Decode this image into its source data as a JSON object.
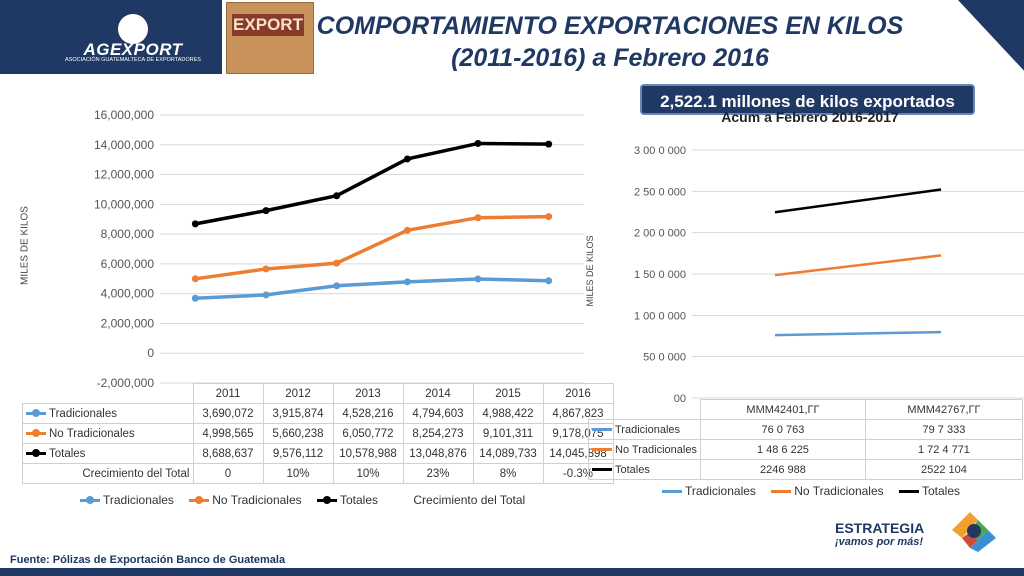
{
  "header": {
    "logo_text": "AGEXPORT",
    "logo_subtitle": "ASOCIACIÓN GUATEMALTECA DE EXPORTADORES",
    "box_label": "EXPORT",
    "title_line1": "COMPORTAMIENTO EXPORTACIONES EN KILOS",
    "title_line2": "(2011-2016) a Febrero 2016",
    "accent_color": "#1f3864"
  },
  "callout": "2,522.1 millones de kilos exportados",
  "footer": {
    "source": "Fuente: Pólizas de Exportación Banco de Guatemala",
    "brand": "ESTRATEGIA",
    "slogan": "¡vamos por más!"
  },
  "chart_data": [
    {
      "type": "line",
      "title": "",
      "ylabel": "MILES DE KILOS",
      "ylim": [
        -2000000,
        16000000
      ],
      "yticks": [
        "16,000,000",
        "14,000,000",
        "12,000,000",
        "10,000,000",
        "8,000,000",
        "6,000,000",
        "4,000,000",
        "2,000,000",
        "0",
        "-2,000,000"
      ],
      "categories": [
        "2011",
        "2012",
        "2013",
        "2014",
        "2015",
        "2016"
      ],
      "series": [
        {
          "name": "Tradicionales",
          "color": "#5b9bd5",
          "values": [
            3690072,
            3915874,
            4528216,
            4794603,
            4988422,
            4867823
          ],
          "labels": [
            "3,690,072",
            "3,915,874",
            "4,528,216",
            "4,794,603",
            "4,988,422",
            "4,867,823"
          ]
        },
        {
          "name": "No Tradicionales",
          "color": "#ed7d31",
          "values": [
            4998565,
            5660238,
            6050772,
            8254273,
            9101311,
            9178075
          ],
          "labels": [
            "4,998,565",
            "5,660,238",
            "6,050,772",
            "8,254,273",
            "9,101,311",
            "9,178,075"
          ]
        },
        {
          "name": "Totales",
          "color": "#000000",
          "values": [
            8688637,
            9576112,
            10578988,
            13048876,
            14089733,
            14045898
          ],
          "labels": [
            "8,688,637",
            "9,576,112",
            "10,578,988",
            "13,048,876",
            "14,089,733",
            "14,045,898"
          ]
        }
      ],
      "extra_row": {
        "name": "Crecimiento del Total",
        "values": [
          "0",
          "10%",
          "10%",
          "23%",
          "8%",
          "-0.3%"
        ]
      },
      "legend": [
        "Tradicionales",
        "No Tradicionales",
        "Totales",
        "Crecimiento del Total"
      ],
      "grid": true,
      "legend_position": "bottom"
    },
    {
      "type": "line",
      "title": "Acum a Febrero  2016-2017",
      "ylabel": "MILES DE KILOS",
      "ylim": [
        0,
        3000000
      ],
      "yticks": [
        "3 00 0 000",
        "2 50 0 000",
        "2 00 0 000",
        "1 50 0 000",
        "1 00 0 000",
        "50 0 000",
        "00"
      ],
      "categories": [
        "MMM42401,ГГ",
        "MMM42767,ГГ"
      ],
      "series": [
        {
          "name": "Tradicionales",
          "color": "#5b9bd5",
          "values": [
            760763,
            797333
          ],
          "labels": [
            "76 0 763",
            "79 7 333"
          ]
        },
        {
          "name": "No Tradicionales",
          "color": "#ed7d31",
          "values": [
            1486225,
            1724771
          ],
          "labels": [
            "1 48 6 225",
            "1 72 4 771"
          ]
        },
        {
          "name": "Totales",
          "color": "#000000",
          "values": [
            2246988,
            2522104
          ],
          "labels": [
            "2246 988",
            "2522 104"
          ]
        }
      ],
      "legend": [
        "Tradicionales",
        "No Tradicionales",
        "Totales"
      ],
      "grid": true,
      "legend_position": "bottom"
    }
  ]
}
